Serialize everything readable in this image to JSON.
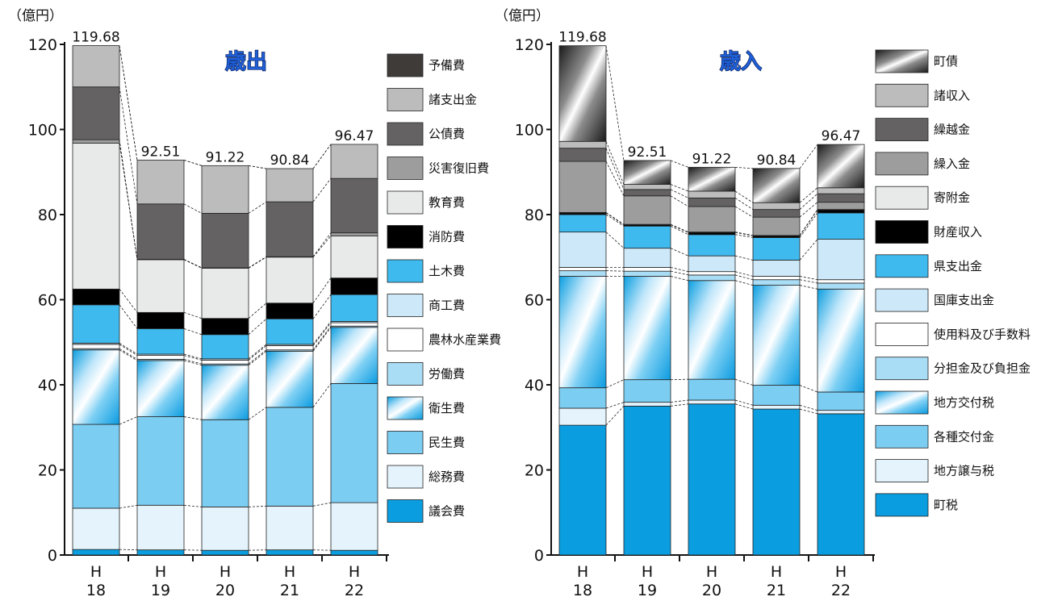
{
  "chart_data": [
    {
      "type": "bar",
      "stacked": true,
      "title": "歳出",
      "unit_label": "（億円）",
      "categories": [
        "H 18",
        "H 19",
        "H 20",
        "H 21",
        "H 22"
      ],
      "ylim": [
        0,
        120
      ],
      "yticks": [
        0,
        20,
        40,
        60,
        80,
        100,
        120
      ],
      "totals": [
        "119.68",
        "92.51",
        "91.22",
        "90.84",
        "96.47"
      ],
      "grid": false,
      "legend_position": "right",
      "series": [
        {
          "name": "議会費",
          "color": "#0a9ee0",
          "values": [
            1.3,
            1.2,
            1.1,
            1.2,
            1.1
          ]
        },
        {
          "name": "総務費",
          "color": "#e4f3fc",
          "values": [
            9.7,
            10.5,
            10.2,
            10.3,
            11.2
          ]
        },
        {
          "name": "民生費",
          "color": "#7ccdf2",
          "values": [
            19.7,
            20.8,
            20.5,
            23.2,
            28.0
          ]
        },
        {
          "name": "衛生費",
          "color": "#19a8e6",
          "pattern": "gradient",
          "values": [
            17.5,
            13.2,
            12.8,
            13.2,
            13.2
          ]
        },
        {
          "name": "労働費",
          "color": "#a9ddf5",
          "values": [
            0.3,
            0.3,
            0.3,
            0.3,
            0.3
          ]
        },
        {
          "name": "農林水産業費",
          "color": "#ffffff",
          "values": [
            1.0,
            0.9,
            0.9,
            1.0,
            0.8
          ]
        },
        {
          "name": "商工費",
          "color": "#cde9f9",
          "values": [
            0.3,
            0.3,
            0.3,
            0.3,
            0.3
          ]
        },
        {
          "name": "土木費",
          "color": "#3fbaee",
          "values": [
            9.0,
            6.0,
            5.7,
            6.0,
            6.3
          ]
        },
        {
          "name": "消防費",
          "color": "#000000",
          "values": [
            3.7,
            3.8,
            3.8,
            3.7,
            3.9
          ]
        },
        {
          "name": "教育費",
          "color": "#e8e9e9",
          "values": [
            34.3,
            12.4,
            11.8,
            10.8,
            9.9
          ]
        },
        {
          "name": "災害復旧費",
          "color": "#9d9d9d",
          "values": [
            0.8,
            0.1,
            0.1,
            0.1,
            0.7
          ]
        },
        {
          "name": "公債費",
          "color": "#646263",
          "values": [
            12.4,
            13.0,
            12.8,
            12.9,
            12.8
          ]
        },
        {
          "name": "諸支出金",
          "color": "#bcbcbc",
          "values": [
            9.7,
            10.3,
            11.2,
            7.8,
            8.0
          ]
        },
        {
          "name": "予備費",
          "color": "#3e3b39",
          "values": [
            0,
            0,
            0,
            0,
            0
          ]
        }
      ]
    },
    {
      "type": "bar",
      "stacked": true,
      "title": "歳入",
      "unit_label": "（億円）",
      "categories": [
        "H 18",
        "H 19",
        "H 20",
        "H 21",
        "H 22"
      ],
      "ylim": [
        0,
        120
      ],
      "yticks": [
        0,
        20,
        40,
        60,
        80,
        100,
        120
      ],
      "totals": [
        "119.68",
        "92.51",
        "91.22",
        "90.84",
        "96.47"
      ],
      "grid": false,
      "legend_position": "right",
      "series": [
        {
          "name": "町税",
          "color": "#0a9ee0",
          "values": [
            30.5,
            35.0,
            35.5,
            34.3,
            33.2
          ]
        },
        {
          "name": "地方譲与税",
          "color": "#e4f3fc",
          "values": [
            4.0,
            0.9,
            0.9,
            0.9,
            0.8
          ]
        },
        {
          "name": "各種交付金",
          "color": "#7ccdf2",
          "values": [
            4.8,
            5.3,
            4.9,
            4.7,
            4.3
          ]
        },
        {
          "name": "地方交付税",
          "color": "#19a8e6",
          "pattern": "gradient",
          "values": [
            26.2,
            24.3,
            23.2,
            23.5,
            24.2
          ]
        },
        {
          "name": "分担金及び負担金",
          "color": "#a9ddf5",
          "values": [
            1.3,
            1.2,
            1.3,
            1.3,
            1.4
          ]
        },
        {
          "name": "使用料及び手数料",
          "color": "#ffffff",
          "values": [
            0.8,
            0.9,
            0.8,
            0.8,
            0.8
          ]
        },
        {
          "name": "国庫支出金",
          "color": "#cde9f9",
          "values": [
            8.3,
            4.5,
            3.7,
            3.8,
            9.5
          ]
        },
        {
          "name": "県支出金",
          "color": "#3fbaee",
          "values": [
            4.1,
            5.2,
            5.0,
            5.3,
            6.2
          ]
        },
        {
          "name": "財産収入",
          "color": "#000000",
          "values": [
            0.4,
            0.3,
            0.5,
            0.4,
            0.7
          ]
        },
        {
          "name": "寄附金",
          "color": "#e8e9e9",
          "values": [
            0.1,
            0.1,
            0.1,
            0.1,
            0.1
          ]
        },
        {
          "name": "繰入金",
          "color": "#9d9d9d",
          "values": [
            12.0,
            6.7,
            6.0,
            4.3,
            1.7
          ]
        },
        {
          "name": "繰越金",
          "color": "#646263",
          "values": [
            3.1,
            1.5,
            2.0,
            1.8,
            2.0
          ]
        },
        {
          "name": "諸収入",
          "color": "#bcbcbc",
          "values": [
            1.6,
            1.2,
            1.6,
            1.6,
            1.4
          ]
        },
        {
          "name": "町債",
          "color": "#555555",
          "pattern": "metal",
          "values": [
            22.48,
            5.61,
            5.62,
            8.04,
            10.17
          ]
        }
      ]
    }
  ]
}
